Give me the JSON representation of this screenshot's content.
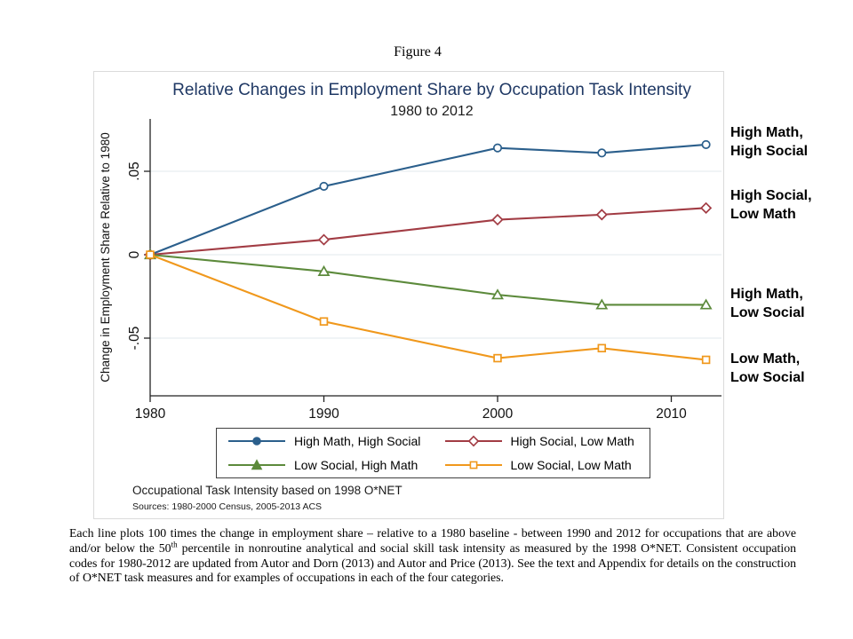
{
  "figure": {
    "label": "Figure 4"
  },
  "chart_data": {
    "type": "line",
    "title": "Relative Changes in Employment Share by Occupation Task Intensity",
    "subtitle": "1980 to 2012",
    "xlabel": "",
    "ylabel": "Change in Employment Share Relative to 1980",
    "x": [
      1980,
      1990,
      2000,
      2006,
      2012
    ],
    "x_ticks": [
      1980,
      1990,
      2000,
      2010
    ],
    "y_ticks": [
      {
        "value": 0.05,
        "label": ".05"
      },
      {
        "value": 0,
        "label": "0"
      },
      {
        "value": -0.05,
        "label": "-.05"
      }
    ],
    "xlim": [
      1980,
      2013
    ],
    "ylim": [
      -0.085,
      0.08
    ],
    "grid": true,
    "legend_position": "bottom",
    "colors": {
      "grid": "#E8EDF1",
      "axis": "#222222",
      "title": "#1F3864"
    },
    "series": [
      {
        "name": "High Math, High Social",
        "color": "#2B5F8C",
        "marker": "circle",
        "values": [
          0,
          0.041,
          0.064,
          0.061,
          0.066
        ]
      },
      {
        "name": "High Social, Low Math",
        "color": "#A23C44",
        "marker": "diamond",
        "values": [
          0,
          0.009,
          0.021,
          0.024,
          0.028
        ]
      },
      {
        "name": "Low Social, High Math",
        "color": "#5C8A3B",
        "marker": "triangle",
        "values": [
          0,
          -0.01,
          -0.024,
          -0.03,
          -0.03
        ]
      },
      {
        "name": "Low Social, Low Math",
        "color": "#F0981C",
        "marker": "square",
        "values": [
          0,
          -0.04,
          -0.062,
          -0.056,
          -0.063
        ]
      }
    ]
  },
  "right_labels": [
    {
      "line1": "High Math,",
      "line2": "High Social"
    },
    {
      "line1": "High Social,",
      "line2": "Low Math"
    },
    {
      "line1": "High Math,",
      "line2": "Low Social"
    },
    {
      "line1": "Low Math,",
      "line2": "Low Social"
    }
  ],
  "notes": {
    "note1": "Occupational Task Intensity based on 1998 O*NET",
    "sources": "Sources: 1980-2000 Census, 2005-2013 ACS"
  },
  "caption": {
    "part1": "Each line plots 100 times the change in employment share – relative to a 1980 baseline - between 1990 and 2012 for occupations that are above and/or below the 50",
    "sup": "th",
    "part2": " percentile in nonroutine analytical and social skill task intensity as measured by the 1998 O*NET. Consistent occupation codes for 1980-2012 are updated from Autor and Dorn (2013) and Autor and Price (2013). See the text and Appendix for details on the construction of O*NET task measures and for examples of occupations in each of the four categories."
  }
}
